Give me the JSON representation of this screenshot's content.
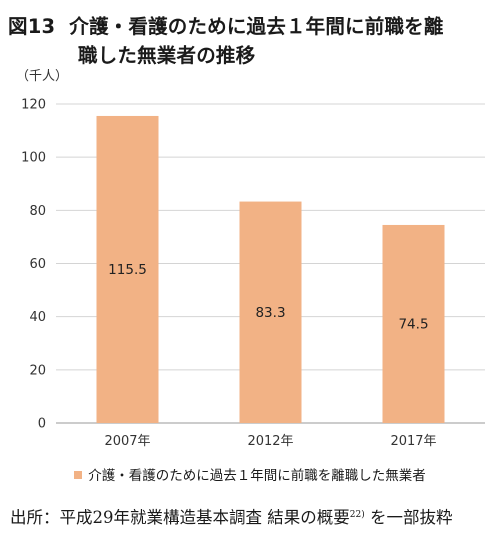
{
  "figure": {
    "number": "図13",
    "title_line1": "介護・看護のために過去１年間に前職を離",
    "title_line2": "職した無業者の推移"
  },
  "chart_data": {
    "type": "bar",
    "unit_label": "（千人）",
    "categories": [
      "2007年",
      "2012年",
      "2017年"
    ],
    "series": [
      {
        "name": "介護・看護のために過去１年間に前職を離職した無業者",
        "values": [
          115.5,
          83.3,
          74.5
        ],
        "color": "#f2b285"
      }
    ],
    "data_labels": [
      "115.5",
      "83.3",
      "74.5"
    ],
    "ylim": [
      0,
      120
    ],
    "yticks": [
      0,
      20,
      40,
      60,
      80,
      100,
      120
    ],
    "grid": true,
    "legend_position": "bottom"
  },
  "source": {
    "prefix": "出所：",
    "text": "平成29年就業構造基本調査 結果の概要",
    "note_ref": "22)",
    "suffix": " を一部抜粋"
  }
}
